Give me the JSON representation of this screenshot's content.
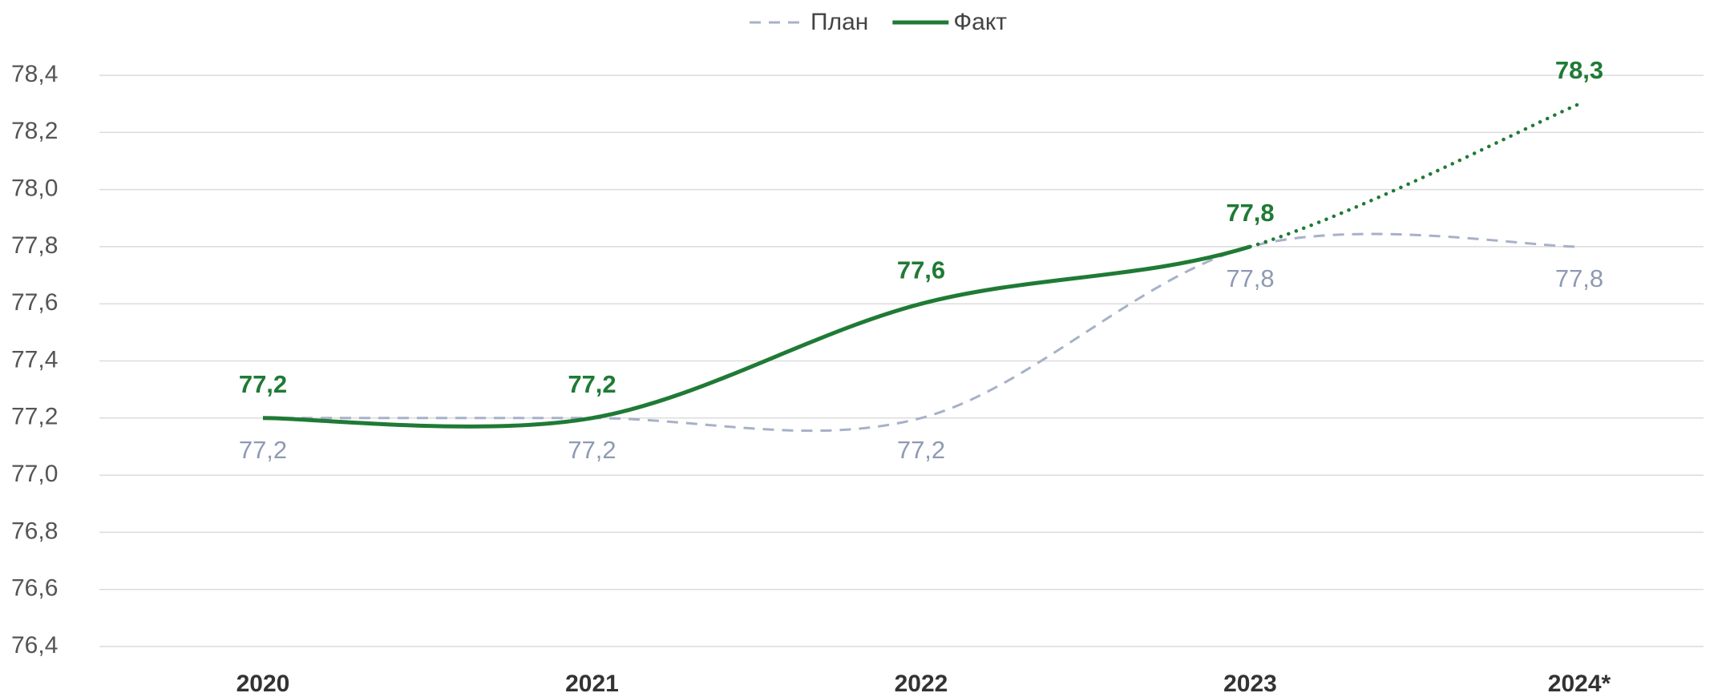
{
  "chart_data": {
    "type": "line",
    "categories": [
      "2020",
      "2021",
      "2022",
      "2023",
      "2024*"
    ],
    "series": [
      {
        "name": "План",
        "color": "#a7b1c8",
        "dash": true,
        "label_position": "below",
        "label_bold": false,
        "label_color": "#8e9ab3",
        "values": [
          77.2,
          77.2,
          77.2,
          77.8,
          77.8
        ],
        "value_labels": [
          "77,2",
          "77,2",
          "77,2",
          "77,8",
          "77,8"
        ]
      },
      {
        "name": "Факт",
        "color": "#1f7a35",
        "dash": false,
        "label_position": "above",
        "label_bold": true,
        "label_color": "#1f7a35",
        "dotted_from": 3,
        "values": [
          77.2,
          77.2,
          77.6,
          77.8,
          78.3
        ],
        "value_labels": [
          "77,2",
          "77,2",
          "77,6",
          "77,8",
          "78,3"
        ]
      }
    ],
    "ylim": [
      76.4,
      78.4
    ],
    "yticks": [
      {
        "value": 76.4,
        "label": "76,4"
      },
      {
        "value": 76.6,
        "label": "76,6"
      },
      {
        "value": 76.8,
        "label": "76,8"
      },
      {
        "value": 77.0,
        "label": "77,0"
      },
      {
        "value": 77.2,
        "label": "77,2"
      },
      {
        "value": 77.4,
        "label": "77,4"
      },
      {
        "value": 77.6,
        "label": "77,6"
      },
      {
        "value": 77.8,
        "label": "77,8"
      },
      {
        "value": 78.0,
        "label": "78,0"
      },
      {
        "value": 78.2,
        "label": "78,2"
      },
      {
        "value": 78.4,
        "label": "78,4"
      }
    ],
    "grid": true,
    "legend": "top"
  }
}
